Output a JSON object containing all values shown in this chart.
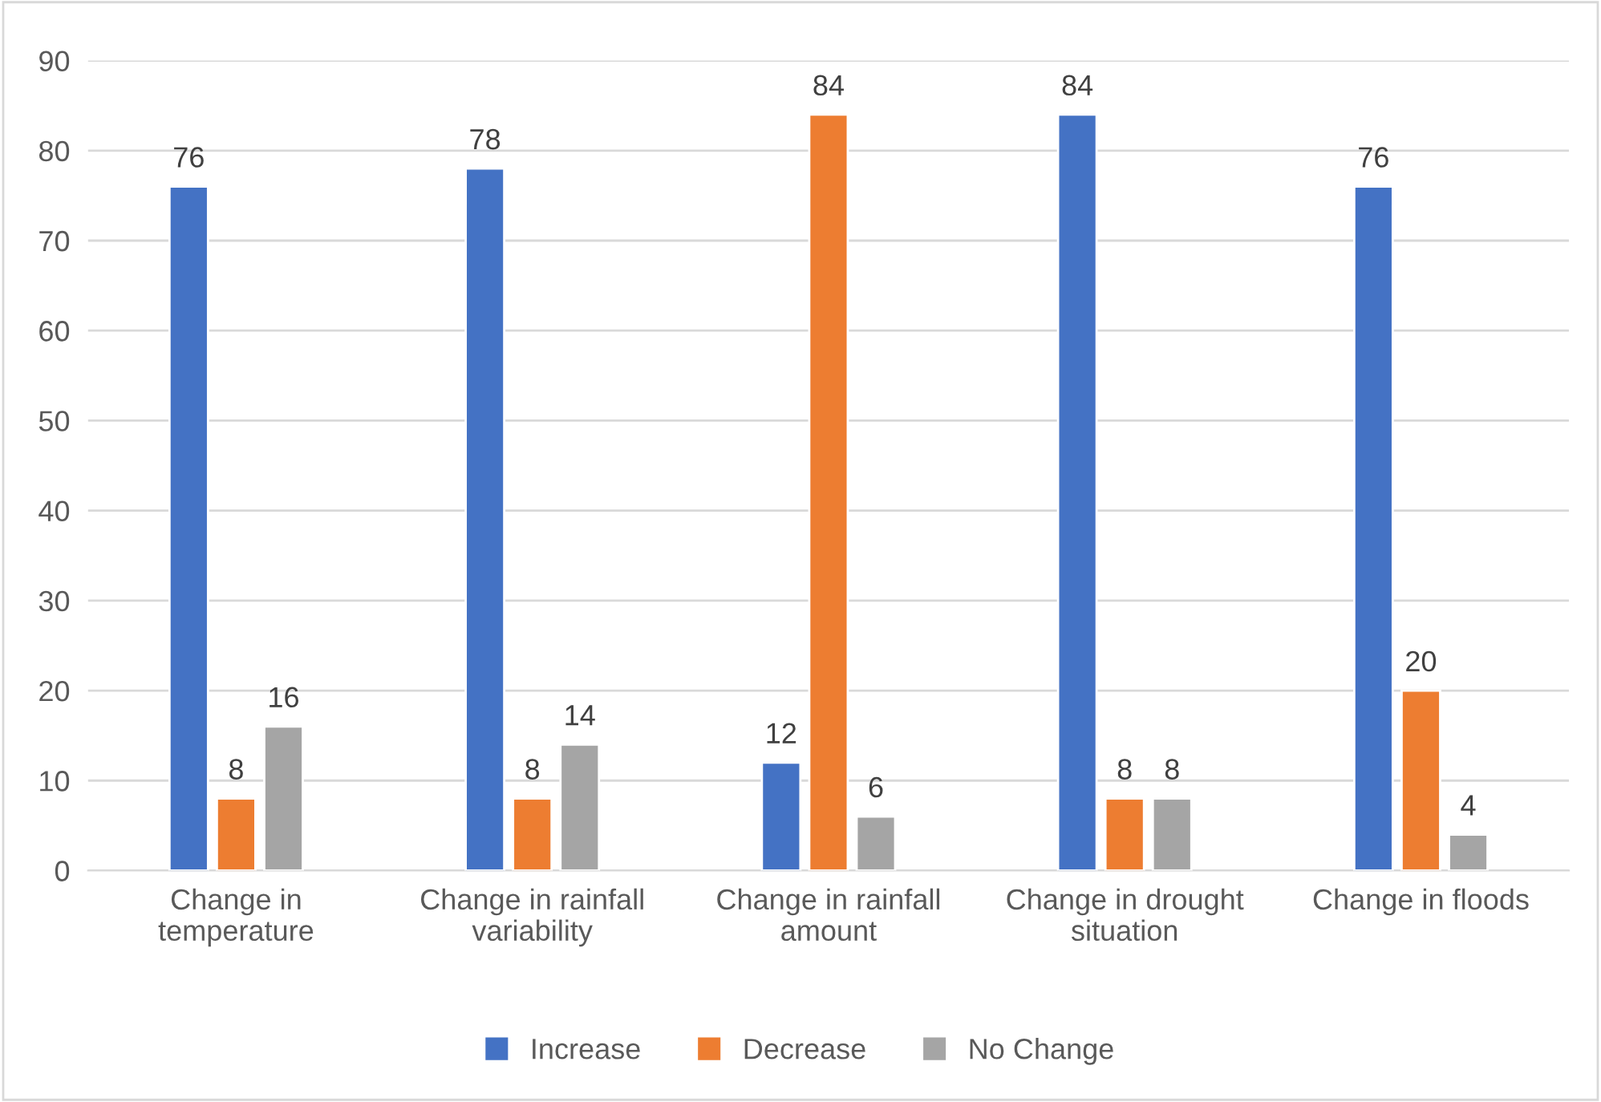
{
  "chart_data": {
    "type": "bar",
    "categories": [
      "Change in\ntemperature",
      "Change in rainfall\nvariability",
      "Change in rainfall\namount",
      "Change in drought\nsituation",
      "Change in floods"
    ],
    "series": [
      {
        "name": "Increase",
        "color": "#4472c4",
        "values": [
          76,
          78,
          12,
          84,
          76
        ]
      },
      {
        "name": "Decrease",
        "color": "#ed7d31",
        "values": [
          8,
          8,
          84,
          8,
          20
        ]
      },
      {
        "name": "No Change",
        "color": "#a5a5a5",
        "values": [
          16,
          14,
          6,
          8,
          4
        ]
      }
    ],
    "ylim": [
      0,
      90
    ],
    "yticks": [
      0,
      10,
      20,
      30,
      40,
      50,
      60,
      70,
      80,
      90
    ],
    "grid": "y",
    "legend": "bottom",
    "data_labels": true
  }
}
